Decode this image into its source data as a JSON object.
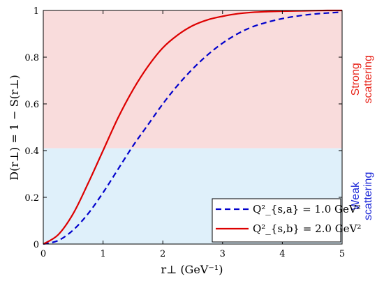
{
  "chart_data": {
    "type": "line",
    "xlabel": "r⊥ (GeV⁻¹)",
    "ylabel": "D(r⊥) = 1 − S(r⊥)",
    "xlim": [
      0,
      5
    ],
    "ylim": [
      0,
      1
    ],
    "x_ticks": [
      "0",
      "1",
      "2",
      "3",
      "4",
      "5"
    ],
    "y_ticks": [
      "0",
      "0.2",
      "0.4",
      "0.6",
      "0.8",
      "1"
    ],
    "grid": false,
    "legend_position": "bottom-right",
    "x": [
      0,
      0.25,
      0.5,
      0.75,
      1.0,
      1.25,
      1.5,
      1.75,
      2.0,
      2.25,
      2.5,
      2.75,
      3.0,
      3.25,
      3.5,
      3.75,
      4.0,
      4.25,
      4.5,
      4.75,
      5.0
    ],
    "series": [
      {
        "name": "Q²_{s,a} = 1.0 GeV²",
        "color": "#0000cc",
        "dash": "dashed",
        "values": [
          0,
          0.015,
          0.06,
          0.13,
          0.22,
          0.32,
          0.42,
          0.51,
          0.6,
          0.68,
          0.75,
          0.81,
          0.86,
          0.9,
          0.93,
          0.95,
          0.965,
          0.976,
          0.984,
          0.989,
          0.993
        ]
      },
      {
        "name": "Q²_{s,b} = 2.0 GeV²",
        "color": "#dd0000",
        "dash": "solid",
        "values": [
          0,
          0.04,
          0.13,
          0.26,
          0.4,
          0.54,
          0.66,
          0.76,
          0.84,
          0.895,
          0.935,
          0.96,
          0.975,
          0.986,
          0.992,
          0.995,
          0.997,
          0.998,
          0.999,
          1.0,
          1.0
        ]
      }
    ],
    "regions": [
      {
        "label_lines": [
          "Strong",
          "scattering"
        ],
        "from": 0.41,
        "to": 1.0,
        "fill": "#f9dcdc",
        "text_color": "#e8261c"
      },
      {
        "label_lines": [
          "Weak",
          "scattering"
        ],
        "from": 0.0,
        "to": 0.41,
        "fill": "#dff0fa",
        "text_color": "#1c28d8"
      }
    ]
  }
}
